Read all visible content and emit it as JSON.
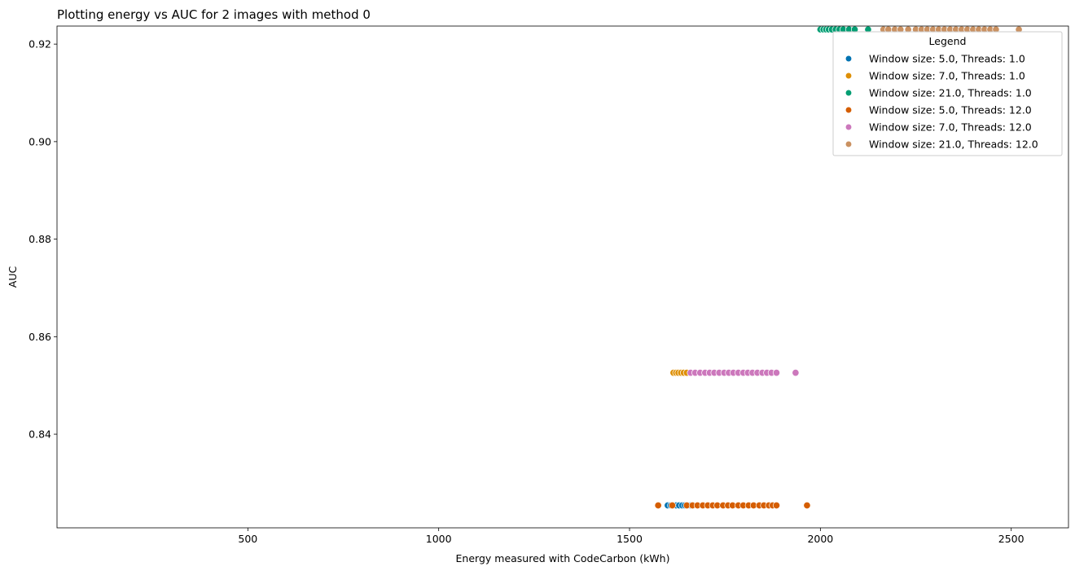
{
  "chart_data": {
    "type": "scatter",
    "title": "Plotting energy vs AUC for 2 images with method 0",
    "xlabel": "Energy measured with CodeCarbon (kWh)",
    "ylabel": "AUC",
    "xlim": [
      0,
      2650
    ],
    "ylim": [
      0.8208,
      0.9237
    ],
    "xticks": [
      500,
      1000,
      1500,
      2000,
      2500
    ],
    "xtick_labels": [
      "500",
      "1000",
      "1500",
      "2000",
      "2500"
    ],
    "yticks": [
      0.84,
      0.86,
      0.88,
      0.9,
      0.92
    ],
    "ytick_labels": [
      "0.84",
      "0.86",
      "0.88",
      "0.90",
      "0.92"
    ],
    "grid": false,
    "legend": {
      "title": "Legend",
      "placement": "top-right"
    },
    "series": [
      {
        "name": "Window size: 5.0, Threads: 1.0",
        "color": "#0173b2",
        "points": [
          [
            1600,
            0.8254
          ],
          [
            1608,
            0.8254
          ],
          [
            1615,
            0.8254
          ],
          [
            1622,
            0.8254
          ],
          [
            1630,
            0.8254
          ],
          [
            1638,
            0.8254
          ],
          [
            1645,
            0.8254
          ],
          [
            1652,
            0.8254
          ],
          [
            1660,
            0.8254
          ]
        ]
      },
      {
        "name": "Window size: 7.0, Threads: 1.0",
        "color": "#de8f05",
        "points": [
          [
            1615,
            0.8526
          ],
          [
            1622,
            0.8526
          ],
          [
            1628,
            0.8526
          ],
          [
            1635,
            0.8526
          ],
          [
            1642,
            0.8526
          ],
          [
            1650,
            0.8526
          ]
        ]
      },
      {
        "name": "Window size: 21.0, Threads: 1.0",
        "color": "#029e73",
        "points": [
          [
            2000,
            0.923
          ],
          [
            2008,
            0.923
          ],
          [
            2015,
            0.923
          ],
          [
            2022,
            0.923
          ],
          [
            2030,
            0.923
          ],
          [
            2040,
            0.923
          ],
          [
            2050,
            0.923
          ],
          [
            2060,
            0.923
          ],
          [
            2075,
            0.923
          ],
          [
            2090,
            0.923
          ],
          [
            2125,
            0.923
          ]
        ]
      },
      {
        "name": "Window size: 5.0, Threads: 12.0",
        "color": "#d55e00",
        "points": [
          [
            1575,
            0.8254
          ],
          [
            1612,
            0.8254
          ],
          [
            1650,
            0.8254
          ],
          [
            1665,
            0.8254
          ],
          [
            1678,
            0.8254
          ],
          [
            1692,
            0.8254
          ],
          [
            1705,
            0.8254
          ],
          [
            1718,
            0.8254
          ],
          [
            1730,
            0.8254
          ],
          [
            1745,
            0.8254
          ],
          [
            1758,
            0.8254
          ],
          [
            1770,
            0.8254
          ],
          [
            1785,
            0.8254
          ],
          [
            1798,
            0.8254
          ],
          [
            1812,
            0.8254
          ],
          [
            1825,
            0.8254
          ],
          [
            1840,
            0.8254
          ],
          [
            1852,
            0.8254
          ],
          [
            1865,
            0.8254
          ],
          [
            1875,
            0.8254
          ],
          [
            1885,
            0.8254
          ],
          [
            1965,
            0.8254
          ]
        ]
      },
      {
        "name": "Window size: 7.0, Threads: 12.0",
        "color": "#cc78bc",
        "points": [
          [
            1660,
            0.8526
          ],
          [
            1672,
            0.8526
          ],
          [
            1685,
            0.8526
          ],
          [
            1698,
            0.8526
          ],
          [
            1710,
            0.8526
          ],
          [
            1722,
            0.8526
          ],
          [
            1735,
            0.8526
          ],
          [
            1748,
            0.8526
          ],
          [
            1760,
            0.8526
          ],
          [
            1772,
            0.8526
          ],
          [
            1785,
            0.8526
          ],
          [
            1798,
            0.8526
          ],
          [
            1810,
            0.8526
          ],
          [
            1822,
            0.8526
          ],
          [
            1835,
            0.8526
          ],
          [
            1848,
            0.8526
          ],
          [
            1860,
            0.8526
          ],
          [
            1872,
            0.8526
          ],
          [
            1885,
            0.8526
          ],
          [
            1935,
            0.8526
          ]
        ]
      },
      {
        "name": "Window size: 21.0, Threads: 12.0",
        "color": "#ca9161",
        "points": [
          [
            2165,
            0.923
          ],
          [
            2178,
            0.923
          ],
          [
            2195,
            0.923
          ],
          [
            2210,
            0.923
          ],
          [
            2230,
            0.923
          ],
          [
            2250,
            0.923
          ],
          [
            2265,
            0.923
          ],
          [
            2280,
            0.923
          ],
          [
            2295,
            0.923
          ],
          [
            2310,
            0.923
          ],
          [
            2325,
            0.923
          ],
          [
            2340,
            0.923
          ],
          [
            2355,
            0.923
          ],
          [
            2370,
            0.923
          ],
          [
            2385,
            0.923
          ],
          [
            2400,
            0.923
          ],
          [
            2415,
            0.923
          ],
          [
            2430,
            0.923
          ],
          [
            2445,
            0.923
          ],
          [
            2460,
            0.923
          ],
          [
            2520,
            0.923
          ]
        ]
      }
    ]
  }
}
